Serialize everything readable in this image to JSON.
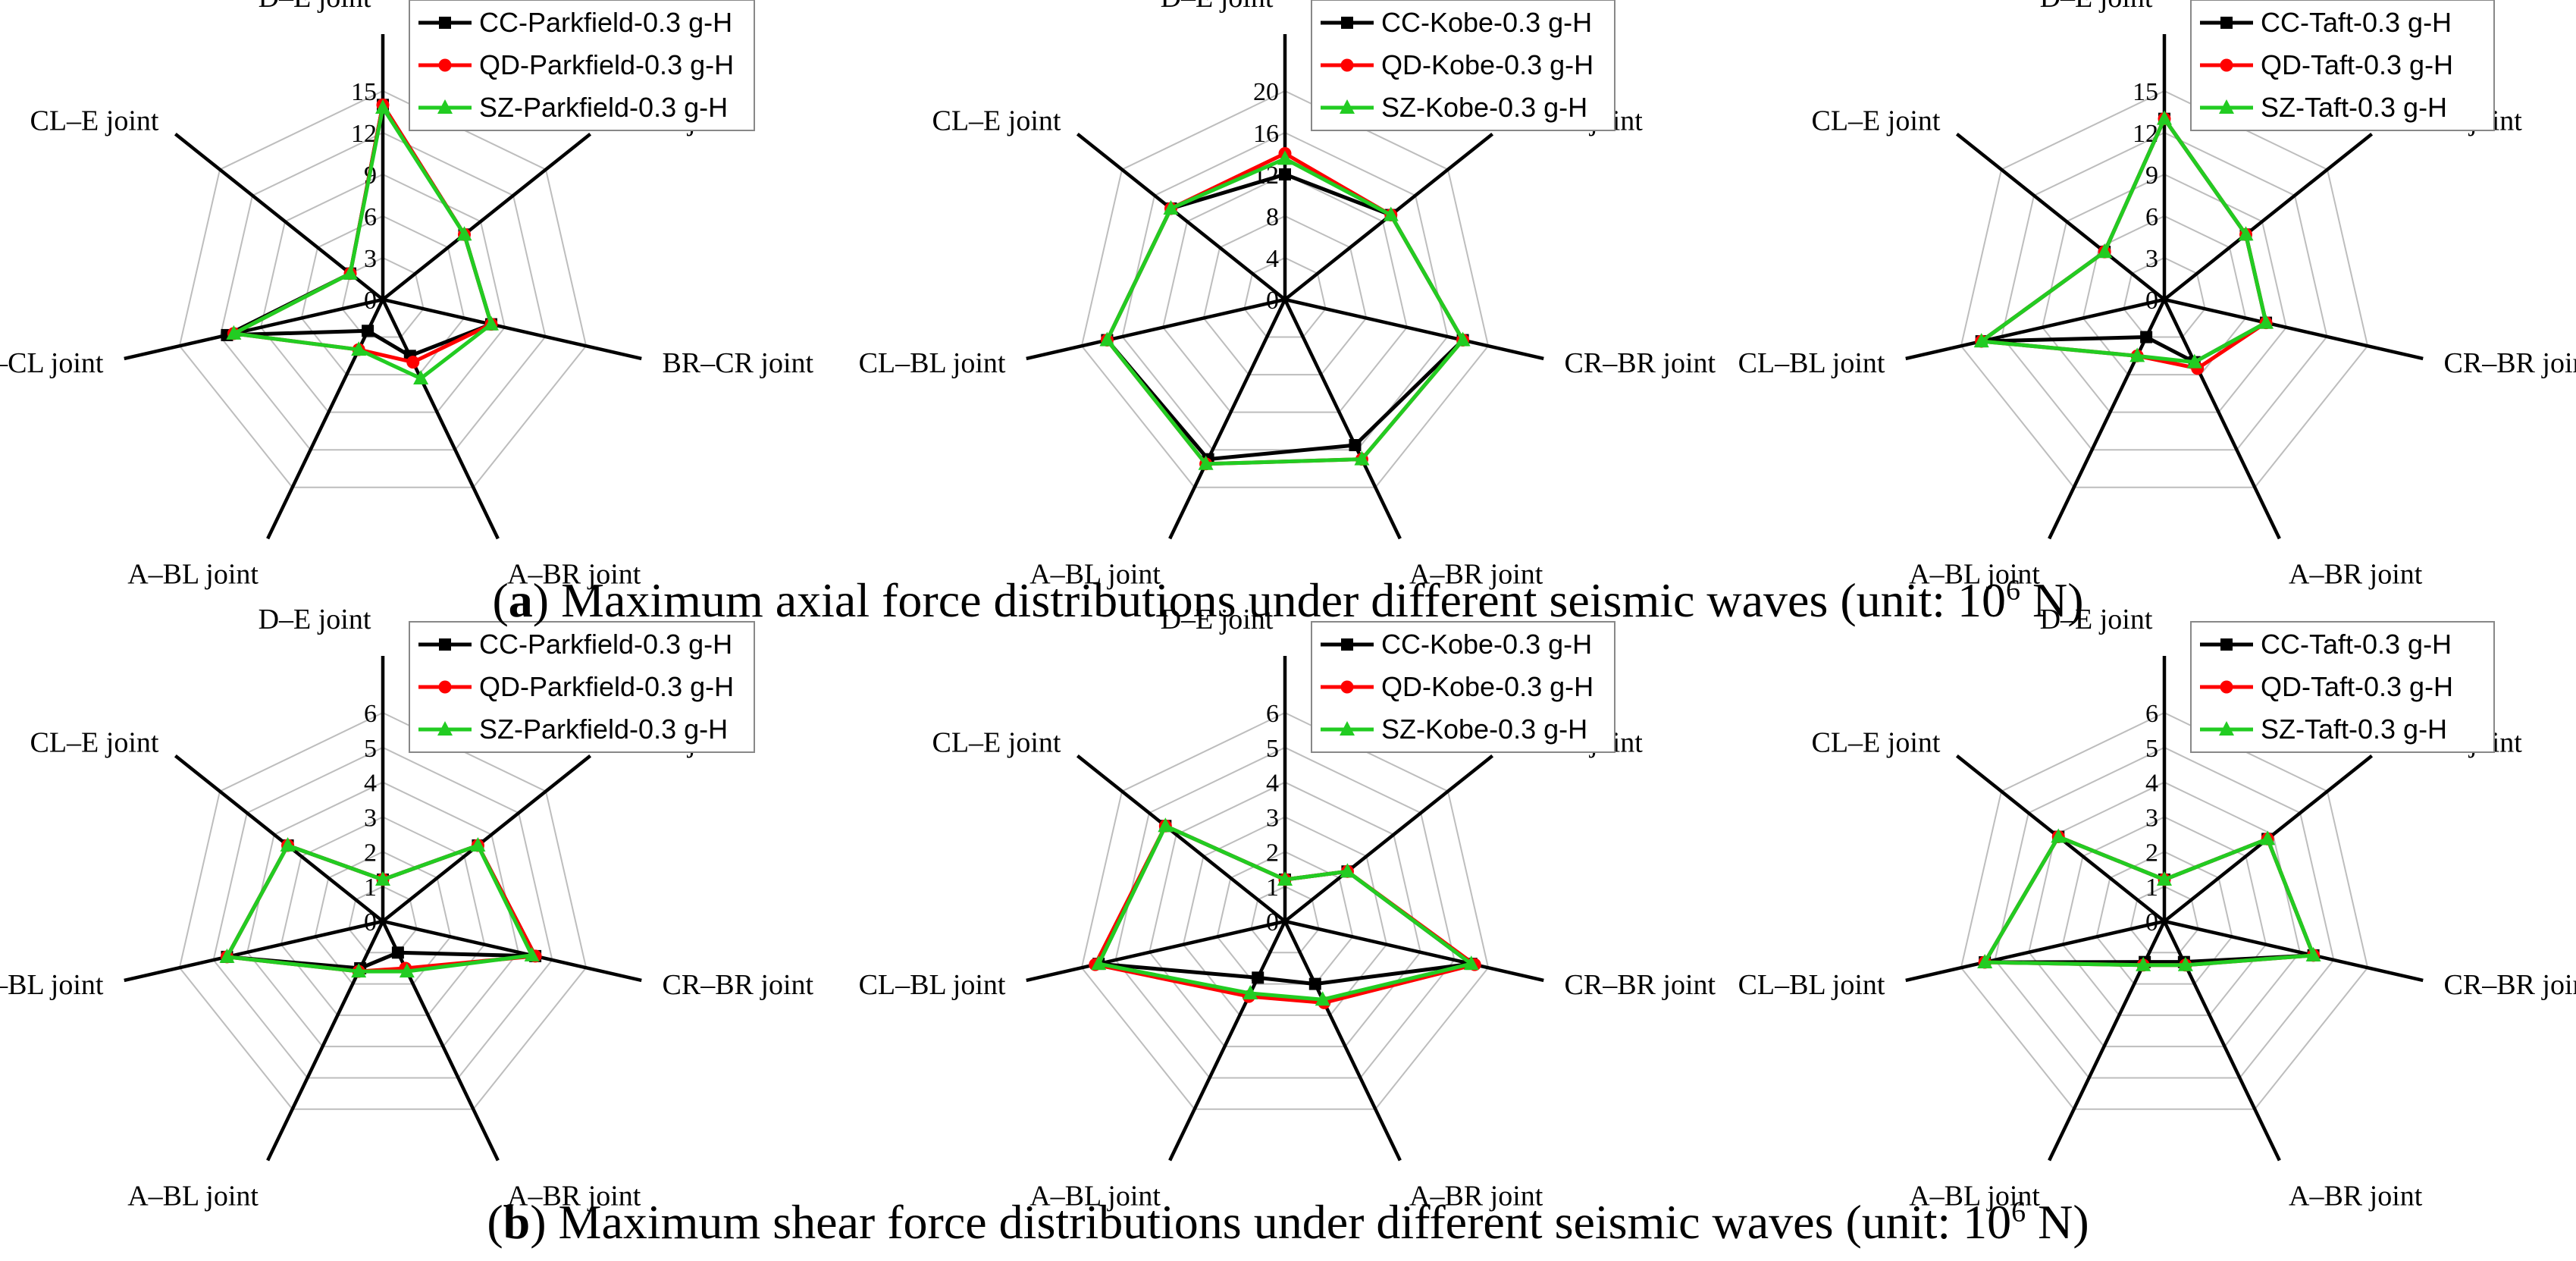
{
  "captions": {
    "a": {
      "label": "a",
      "pre": "(",
      "post": ") Maximum axial force distributions under different seismic waves (unit: 10",
      "sup": "6",
      "tail": " N)"
    },
    "b": {
      "label": "b",
      "pre": "(",
      "post": ") Maximum shear force distributions under different seismic waves (unit: 10",
      "sup": "6",
      "tail": " N)"
    }
  },
  "colors": {
    "CC": "#000000",
    "QD": "#ff0000",
    "SZ": "#22cc22",
    "grid": "#bdbdbd",
    "axis": "#000000"
  },
  "chart_data": [
    {
      "id": "a1",
      "type": "radar",
      "row": 0,
      "col": 0,
      "categories": [
        "D–E joint",
        "CR–D joint",
        "BR–CR joint",
        "A–BR joint",
        "A–BL joint",
        "BL–CL joint",
        "CL–E joint"
      ],
      "rlim": [
        0,
        15
      ],
      "ticks": [
        0,
        3,
        6,
        9,
        12,
        15
      ],
      "series": [
        {
          "name": "CC-Parkfield-0.3 g-H",
          "values": [
            14,
            7.5,
            8,
            4.5,
            2.5,
            11.5,
            3
          ]
        },
        {
          "name": "QD-Parkfield-0.3 g-H",
          "values": [
            14,
            7.5,
            8,
            5,
            4,
            11,
            3
          ]
        },
        {
          "name": "SZ-Parkfield-0.3 g-H",
          "values": [
            13.8,
            7.5,
            8,
            6.3,
            4,
            11,
            3
          ]
        }
      ]
    },
    {
      "id": "a2",
      "type": "radar",
      "row": 0,
      "col": 1,
      "categories": [
        "D–E joint",
        "CR–D joint",
        "CR–BR joint",
        "A–BR joint",
        "A–BL joint",
        "CL–BL joint",
        "CL–E joint"
      ],
      "rlim": [
        0,
        20
      ],
      "ticks": [
        0,
        4,
        8,
        12,
        16,
        20
      ],
      "series": [
        {
          "name": "CC-Kobe-0.3 g-H",
          "values": [
            12,
            13,
            17.5,
            15.5,
            17,
            17.5,
            14
          ]
        },
        {
          "name": "QD-Kobe-0.3 g-H",
          "values": [
            14,
            13,
            17.5,
            17,
            17.5,
            17.5,
            14
          ]
        },
        {
          "name": "SZ-Kobe-0.3 g-H",
          "values": [
            13.5,
            13,
            17.5,
            17,
            17.5,
            17.5,
            14
          ]
        }
      ]
    },
    {
      "id": "a3",
      "type": "radar",
      "row": 0,
      "col": 2,
      "categories": [
        "D–E joint",
        "CR–D joint",
        "CR–BR joint",
        "A–BR joint",
        "A–BL joint",
        "CL–BL joint",
        "CL–E joint"
      ],
      "rlim": [
        0,
        15
      ],
      "ticks": [
        0,
        3,
        6,
        9,
        12,
        15
      ],
      "series": [
        {
          "name": "CC-Taft-0.3 g-H",
          "values": [
            13,
            7.5,
            7.5,
            5,
            3,
            13.5,
            5.5
          ]
        },
        {
          "name": "QD-Taft-0.3 g-H",
          "values": [
            13,
            7.5,
            7.5,
            5.5,
            4.5,
            13.5,
            5.5
          ]
        },
        {
          "name": "SZ-Taft-0.3 g-H",
          "values": [
            13,
            7.5,
            7.5,
            5,
            4.5,
            13.5,
            5.5
          ]
        }
      ]
    },
    {
      "id": "b1",
      "type": "radar",
      "row": 1,
      "col": 0,
      "categories": [
        "D–E joint",
        "CR–D joint",
        "CR–BR joint",
        "A–BR joint",
        "A–BL joint",
        "CL–BL joint",
        "CL–E joint"
      ],
      "rlim": [
        0,
        6
      ],
      "ticks": [
        0,
        1,
        2,
        3,
        4,
        5,
        6
      ],
      "series": [
        {
          "name": "CC-Parkfield-0.3 g-H",
          "values": [
            1.2,
            3.5,
            4.5,
            1,
            1.5,
            4.6,
            3.5
          ]
        },
        {
          "name": "QD-Parkfield-0.3 g-H",
          "values": [
            1.2,
            3.5,
            4.5,
            1.5,
            1.6,
            4.6,
            3.5
          ]
        },
        {
          "name": "SZ-Parkfield-0.3 g-H",
          "values": [
            1.2,
            3.5,
            4.4,
            1.6,
            1.6,
            4.6,
            3.5
          ]
        }
      ]
    },
    {
      "id": "b2",
      "type": "radar",
      "row": 1,
      "col": 1,
      "categories": [
        "D–E joint",
        "CR–D joint",
        "CR–BR joint",
        "A–BR joint",
        "A–BL joint",
        "CL–BL joint",
        "CL–E joint"
      ],
      "rlim": [
        0,
        6
      ],
      "ticks": [
        0,
        1,
        2,
        3,
        4,
        5,
        6
      ],
      "series": [
        {
          "name": "CC-Kobe-0.3 g-H",
          "values": [
            1.2,
            2.3,
            5.5,
            2,
            1.8,
            5.5,
            4.4
          ]
        },
        {
          "name": "QD-Kobe-0.3 g-H",
          "values": [
            1.2,
            2.3,
            5.6,
            2.6,
            2.4,
            5.6,
            4.4
          ]
        },
        {
          "name": "SZ-Kobe-0.3 g-H",
          "values": [
            1.2,
            2.3,
            5.5,
            2.5,
            2.3,
            5.5,
            4.4
          ]
        }
      ]
    },
    {
      "id": "b3",
      "type": "radar",
      "row": 1,
      "col": 2,
      "categories": [
        "D–E joint",
        "CR–D joint",
        "CR–BR joint",
        "A–BR joint",
        "A–BL joint",
        "CL–BL joint",
        "CL–E joint"
      ],
      "rlim": [
        0,
        6
      ],
      "ticks": [
        0,
        1,
        2,
        3,
        4,
        5,
        6
      ],
      "series": [
        {
          "name": "CC-Taft-0.3 g-H",
          "values": [
            1.2,
            3.8,
            4.4,
            1.3,
            1.3,
            5.3,
            3.9
          ]
        },
        {
          "name": "QD-Taft-0.3 g-H",
          "values": [
            1.2,
            3.8,
            4.4,
            1.4,
            1.4,
            5.3,
            3.9
          ]
        },
        {
          "name": "SZ-Taft-0.3 g-H",
          "values": [
            1.2,
            3.8,
            4.4,
            1.4,
            1.4,
            5.3,
            3.9
          ]
        }
      ]
    }
  ]
}
